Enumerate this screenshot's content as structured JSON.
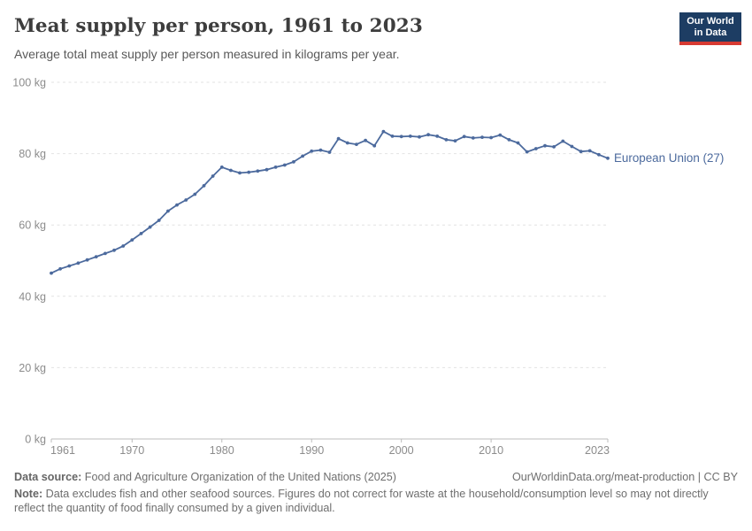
{
  "header": {
    "title": "Meat supply per person, 1961 to 2023",
    "subtitle": "Average total meat supply per person measured in kilograms per year."
  },
  "logo": {
    "line1": "Our World",
    "line2": "in Data",
    "bg": "#1d3d63",
    "stripe": "#d73a32"
  },
  "chart_data": {
    "type": "line",
    "title": "Meat supply per person, 1961 to 2023",
    "xlabel": "",
    "ylabel": "",
    "unit": "kg",
    "xlim": [
      1961,
      2023
    ],
    "ylim": [
      0,
      100
    ],
    "xticks": [
      1961,
      1970,
      1980,
      1990,
      2000,
      2010,
      2023
    ],
    "yticks": [
      0,
      20,
      40,
      60,
      80,
      100
    ],
    "grid": "horizontal-dashed",
    "legend_position": "end-of-line-label",
    "line_color": "#4c6a9d",
    "x": [
      1961,
      1962,
      1963,
      1964,
      1965,
      1966,
      1967,
      1968,
      1969,
      1970,
      1971,
      1972,
      1973,
      1974,
      1975,
      1976,
      1977,
      1978,
      1979,
      1980,
      1981,
      1982,
      1983,
      1984,
      1985,
      1986,
      1987,
      1988,
      1989,
      1990,
      1991,
      1992,
      1993,
      1994,
      1995,
      1996,
      1997,
      1998,
      1999,
      2000,
      2001,
      2002,
      2003,
      2004,
      2005,
      2006,
      2007,
      2008,
      2009,
      2010,
      2011,
      2012,
      2013,
      2014,
      2015,
      2016,
      2017,
      2018,
      2019,
      2020,
      2021,
      2022,
      2023
    ],
    "series": [
      {
        "name": "European Union (27)",
        "color": "#4c6a9d",
        "values": [
          46.5,
          47.7,
          48.5,
          49.3,
          50.2,
          51.1,
          52.0,
          52.9,
          54.1,
          55.8,
          57.6,
          59.4,
          61.3,
          63.9,
          65.6,
          67.0,
          68.6,
          71.0,
          73.7,
          76.2,
          75.3,
          74.6,
          74.8,
          75.1,
          75.5,
          76.2,
          76.8,
          77.7,
          79.3,
          80.7,
          81.0,
          80.4,
          84.2,
          83.0,
          82.6,
          83.7,
          82.2,
          86.2,
          84.9,
          84.8,
          84.9,
          84.7,
          85.3,
          84.9,
          83.9,
          83.6,
          84.8,
          84.4,
          84.6,
          84.5,
          85.2,
          83.9,
          83.0,
          80.5,
          81.4,
          82.2,
          81.9,
          83.5,
          82.0,
          80.6,
          80.8,
          79.7,
          78.7
        ]
      }
    ]
  },
  "footer": {
    "source_label": "Data source:",
    "source_text": " Food and Agriculture Organization of the United Nations (2025)",
    "link": "OurWorldinData.org/meat-production",
    "separator": " | ",
    "license": "CC BY",
    "note_label": "Note:",
    "note_text": " Data excludes fish and other seafood sources. Figures do not correct for waste at the household/consumption level so may not directly reflect the quantity of food finally consumed by a given individual."
  }
}
